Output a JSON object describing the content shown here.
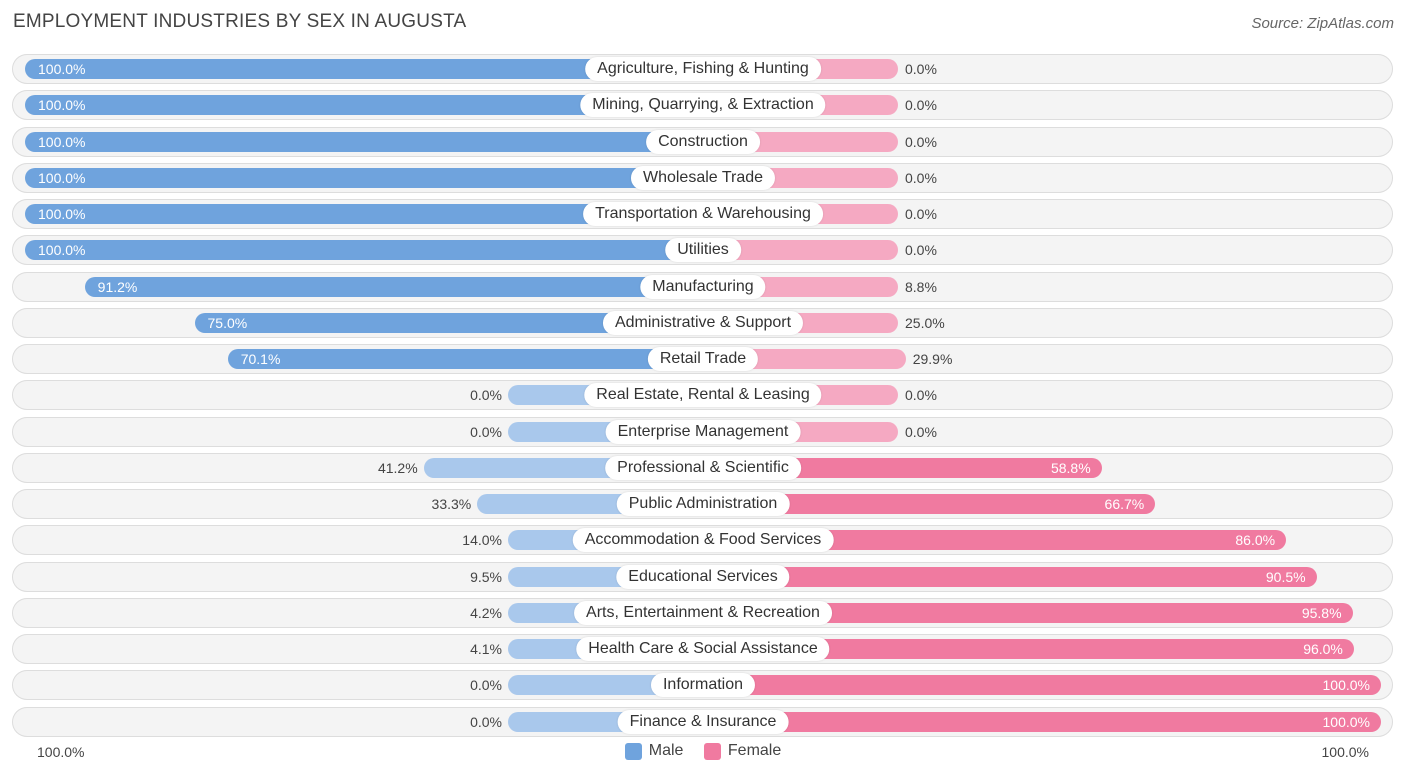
{
  "title": "EMPLOYMENT INDUSTRIES BY SEX IN AUGUSTA",
  "source": "Source: ZipAtlas.com",
  "axis": {
    "left_label": "100.0%",
    "right_label": "100.0%"
  },
  "legend": {
    "male": "Male",
    "female": "Female"
  },
  "colors": {
    "male": "#6fa3dd",
    "male_light": "#a9c8ec",
    "female": "#f07aa0",
    "female_light": "#f5a9c2"
  },
  "chart_data": {
    "type": "bar",
    "orientation": "horizontal-diverging",
    "title": "EMPLOYMENT INDUSTRIES BY SEX IN AUGUSTA",
    "xlim": [
      -100,
      100
    ],
    "series": [
      {
        "name": "Male",
        "values": [
          100.0,
          100.0,
          100.0,
          100.0,
          100.0,
          100.0,
          91.2,
          75.0,
          70.1,
          0.0,
          0.0,
          41.2,
          33.3,
          14.0,
          9.5,
          4.2,
          4.1,
          0.0,
          0.0
        ],
        "labels": [
          "100.0%",
          "100.0%",
          "100.0%",
          "100.0%",
          "100.0%",
          "100.0%",
          "91.2%",
          "75.0%",
          "70.1%",
          "0.0%",
          "0.0%",
          "41.2%",
          "33.3%",
          "14.0%",
          "9.5%",
          "4.2%",
          "4.1%",
          "0.0%",
          "0.0%"
        ]
      },
      {
        "name": "Female",
        "values": [
          0.0,
          0.0,
          0.0,
          0.0,
          0.0,
          0.0,
          8.8,
          25.0,
          29.9,
          0.0,
          0.0,
          58.8,
          66.7,
          86.0,
          90.5,
          95.8,
          96.0,
          100.0,
          100.0
        ],
        "labels": [
          "0.0%",
          "0.0%",
          "0.0%",
          "0.0%",
          "0.0%",
          "0.0%",
          "8.8%",
          "25.0%",
          "29.9%",
          "0.0%",
          "0.0%",
          "58.8%",
          "66.7%",
          "86.0%",
          "90.5%",
          "95.8%",
          "96.0%",
          "100.0%",
          "100.0%"
        ]
      }
    ],
    "categories": [
      "Agriculture, Fishing & Hunting",
      "Mining, Quarrying, & Extraction",
      "Construction",
      "Wholesale Trade",
      "Transportation & Warehousing",
      "Utilities",
      "Manufacturing",
      "Administrative & Support",
      "Retail Trade",
      "Real Estate, Rental & Leasing",
      "Enterprise Management",
      "Professional & Scientific",
      "Public Administration",
      "Accommodation & Food Services",
      "Educational Services",
      "Arts, Entertainment & Recreation",
      "Health Care & Social Assistance",
      "Information",
      "Finance & Insurance"
    ]
  }
}
